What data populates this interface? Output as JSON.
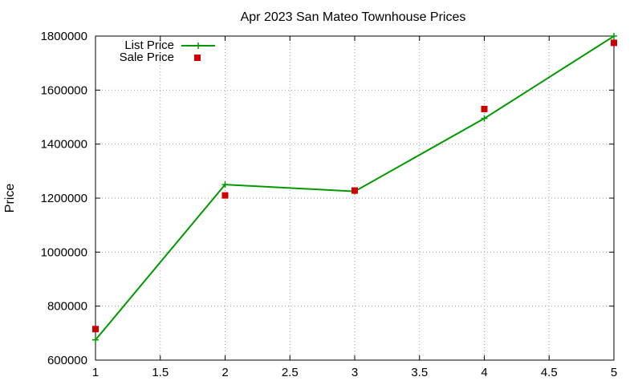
{
  "chart_data": {
    "type": "line",
    "title": "Apr 2023 San Mateo Townhouse Prices",
    "xlabel": "",
    "ylabel": "Price",
    "x": [
      1,
      2,
      3,
      4,
      5
    ],
    "xlim": [
      1,
      5
    ],
    "ylim": [
      600000,
      1800000
    ],
    "xticks": [
      "1",
      "1.5",
      "2",
      "2.5",
      "3",
      "3.5",
      "4",
      "4.5",
      "5"
    ],
    "xtick_values": [
      1,
      1.5,
      2,
      2.5,
      3,
      3.5,
      4,
      4.5,
      5
    ],
    "yticks": [
      "600000",
      "800000",
      "1000000",
      "1200000",
      "1400000",
      "1600000",
      "1800000"
    ],
    "ytick_values": [
      600000,
      800000,
      1000000,
      1200000,
      1400000,
      1600000,
      1800000
    ],
    "grid": true,
    "legend_position": "top-left",
    "series": [
      {
        "name": "List Price",
        "style": "line with plus markers",
        "color": "#009900",
        "values": [
          675000,
          1250000,
          1225000,
          1495000,
          1800000
        ]
      },
      {
        "name": "Sale Price",
        "style": "square markers",
        "color": "#cc0000",
        "values": [
          715000,
          1210000,
          1228000,
          1530000,
          1775000
        ]
      }
    ]
  }
}
